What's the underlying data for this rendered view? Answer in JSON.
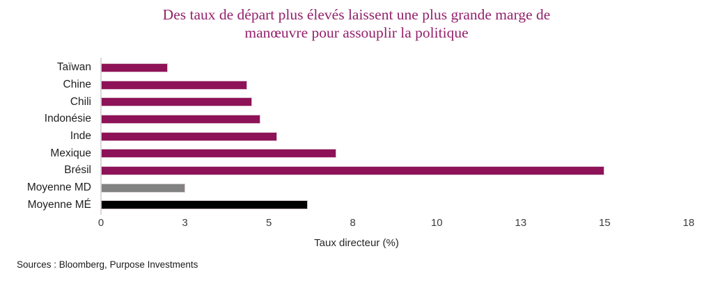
{
  "title": {
    "line1": "Des taux de départ plus élevés laissent une plus grande marge de",
    "line2": "manœuvre pour assouplir la politique"
  },
  "chart_data": {
    "type": "bar",
    "orientation": "horizontal",
    "title": "Des taux de départ plus élevés laissent une plus grande marge de manœuvre pour assouplir la politique",
    "categories": [
      "Taïwan",
      "Chine",
      "Chili",
      "Indonésie",
      "Inde",
      "Mexique",
      "Brésil",
      "Moyenne MD",
      "Moyenne MÉ"
    ],
    "values": [
      2.0,
      4.35,
      4.5,
      4.75,
      5.25,
      7.0,
      15.0,
      2.5,
      6.15
    ],
    "bar_colors": [
      "#8E1257",
      "#8E1257",
      "#8E1257",
      "#8E1257",
      "#8E1257",
      "#8E1257",
      "#8E1257",
      "#828282",
      "#000000"
    ],
    "xlabel": "Taux directeur (%)",
    "ylabel": "",
    "xlim": [
      0,
      17.5
    ],
    "xticks": [
      0,
      2.5,
      5,
      7.5,
      10,
      12.5,
      15,
      17.5
    ],
    "xtick_labels": [
      "0",
      "3",
      "5",
      "8",
      "10",
      "13",
      "15",
      "18"
    ],
    "grid": false,
    "legend": "none"
  },
  "colors": {
    "accent_bar": "#8E1257",
    "developed_avg_bar": "#828282",
    "emerging_avg_bar": "#000000",
    "title_text": "#93216B",
    "axis_line": "#D9D9D9"
  },
  "source": "Sources : Bloomberg, Purpose Investments"
}
